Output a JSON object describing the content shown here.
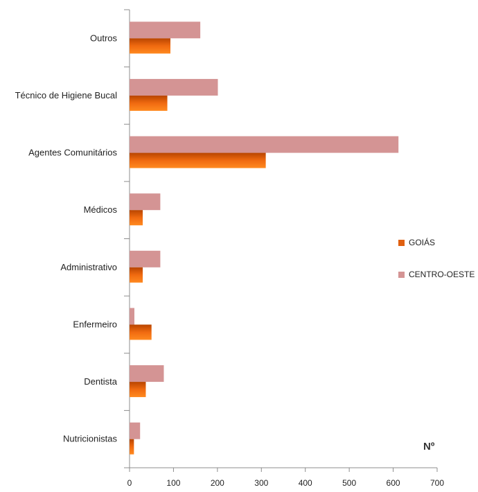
{
  "chart_data": {
    "type": "bar",
    "orientation": "horizontal",
    "categories": [
      "Outros",
      "Técnico de Higiene Bucal",
      "Agentes Comunitários",
      "Médicos",
      "Administrativo",
      "Enfermeiro",
      "Dentista",
      "Nutricionistas"
    ],
    "series": [
      {
        "name": "GOIÁS",
        "color": "#e06010",
        "values": [
          93,
          86,
          310,
          30,
          30,
          50,
          37,
          10
        ]
      },
      {
        "name": "CENTRO-OESTE",
        "color": "#d49494",
        "values": [
          161,
          201,
          612,
          70,
          70,
          11,
          78,
          24
        ]
      }
    ],
    "xlim": [
      0,
      700
    ],
    "xticks": [
      0,
      100,
      200,
      300,
      400,
      500,
      600,
      700
    ],
    "xlabel": "Nº",
    "legend_position": "right",
    "grid": false
  }
}
